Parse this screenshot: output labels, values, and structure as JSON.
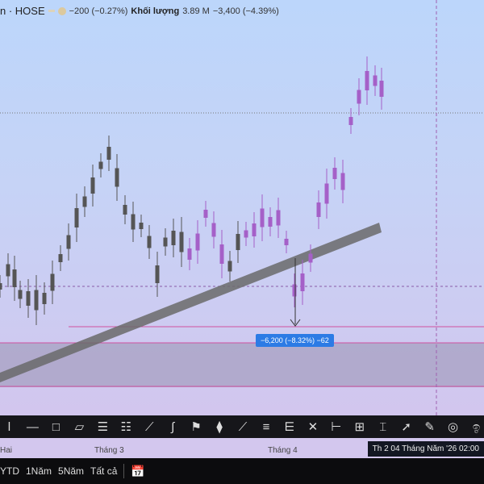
{
  "header": {
    "symbol": "n · HOSE",
    "change": "−200 (−0.27%)",
    "volume_label": "Khối lượng",
    "volume": "3.89 M",
    "volume_change": "−3,400 (−4.39%)"
  },
  "measure_label": "−6,200 (−8.32%) −62",
  "colors": {
    "candle_down": "#555555",
    "candle_hl": "#a560c8",
    "trendline": "#6a6a6a",
    "hline": "#d050a0",
    "badge": "#2c7be5"
  },
  "toolbar": {
    "icons": [
      "cursor-icon",
      "horizontal-ray-icon",
      "rectangle-icon",
      "parallel-channel-icon",
      "regression-icon",
      "flat-top-icon",
      "disjoint-channel-icon",
      "path-icon",
      "pitchfork-icon",
      "candle-pattern-icon",
      "trend-line-icon",
      "fib-retracement-icon",
      "fib-channel-icon",
      "xabcd-pattern-icon",
      "date-range-icon",
      "price-date-range-icon",
      "price-range-icon",
      "arrow-icon",
      "brush-icon",
      "circle-icon",
      "spiral-icon"
    ]
  },
  "time_axis": {
    "labels": [
      "Hai",
      "Tháng 3",
      "Tháng 4"
    ],
    "crosshair": "Th 2 04 Tháng Năm '26   02:00"
  },
  "range_bar": {
    "items": [
      "YTD",
      "1Năm",
      "5Năm",
      "Tất cả"
    ],
    "calendar_icon": "calendar-goto-icon"
  }
}
